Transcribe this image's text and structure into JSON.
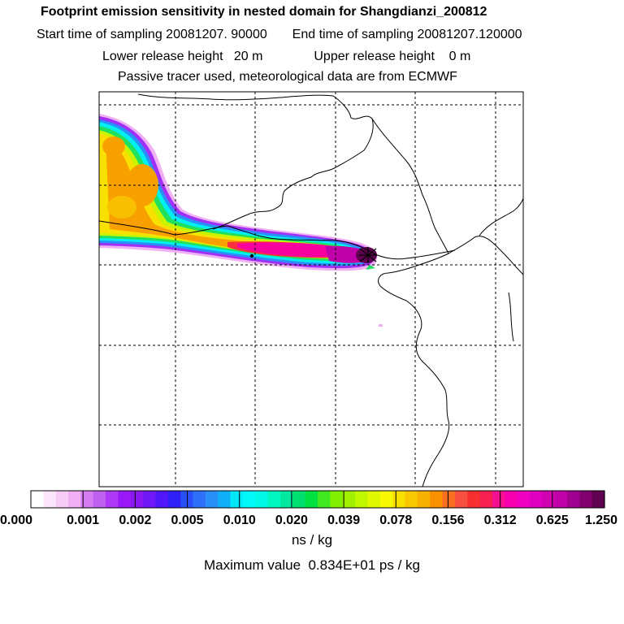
{
  "header": {
    "title": "Footprint emission sensitivity in nested domain for Shangdianzi_200812",
    "start_label": "Start time of sampling 20081207. 90000",
    "end_label": "End time of sampling 20081207.120000",
    "lower_label": "Lower release height   20 m",
    "upper_label": "Upper release height    0 m",
    "tracer_label": "Passive tracer used, meteorological data are from ECMWF"
  },
  "chart_data": {
    "type": "heatmap",
    "title": "Footprint emission sensitivity in nested domain for Shangdianzi_200812",
    "colorbar": {
      "ticks": [
        "0.000",
        "0.001",
        "0.002",
        "0.005",
        "0.010",
        "0.020",
        "0.039",
        "0.078",
        "0.156",
        "0.312",
        "0.625",
        "1.250"
      ],
      "colors": [
        "#ffffff",
        "#fbe6fb",
        "#f6ccf6",
        "#f0b0f3",
        "#d47cf0",
        "#c060f0",
        "#ad38f6",
        "#9a18f8",
        "#8a18f0",
        "#7018f8",
        "#5018f8",
        "#3020f8",
        "#2850f8",
        "#3070f8",
        "#2890f8",
        "#10b0f8",
        "#00e8f8",
        "#00f8f8",
        "#00f8e8",
        "#00f8c0",
        "#00e8a0",
        "#00e070",
        "#00e040",
        "#40e820",
        "#80f000",
        "#a0f000",
        "#c0f800",
        "#e0f800",
        "#f8f800",
        "#f8e000",
        "#f8c800",
        "#f8b000",
        "#f89000",
        "#f87020",
        "#f85040",
        "#f83030",
        "#f82050",
        "#f81090",
        "#f800b0",
        "#f000c0",
        "#e000c0",
        "#d000b0",
        "#c000a8",
        "#a00090",
        "#800070",
        "#600050"
      ],
      "unit": "ns / kg"
    },
    "max_value_text": "Maximum value  0.834E+01 ps / kg",
    "receptor": "Shangdianzi",
    "grid": true
  }
}
